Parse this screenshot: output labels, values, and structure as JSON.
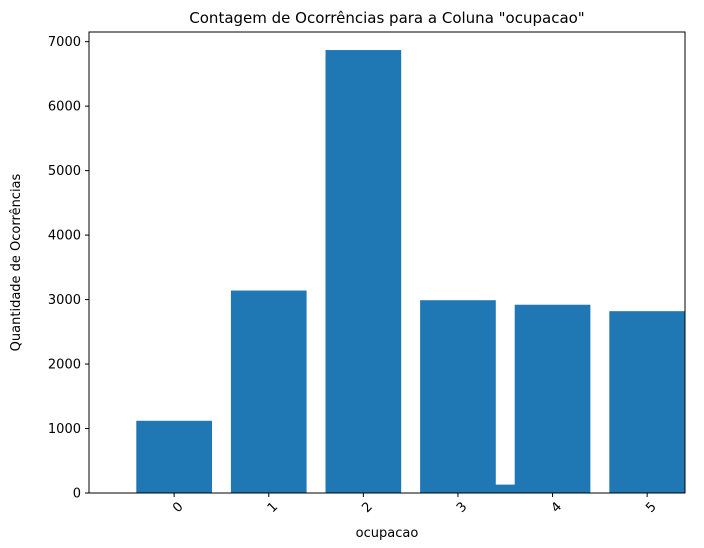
{
  "chart_data": {
    "type": "bar",
    "title": "Contagem de Ocorrências para a Coluna \"ocupacao\"",
    "xlabel": "ocupacao",
    "ylabel": "Quantidade de Ocorrências",
    "ylim": [
      0,
      7150
    ],
    "xlim": [
      -0.9,
      5.4
    ],
    "yticks": [
      0,
      1000,
      2000,
      3000,
      4000,
      5000,
      6000,
      7000
    ],
    "xticks": [
      0,
      1,
      2,
      3,
      4,
      5
    ],
    "xtick_rotation": 45,
    "bar_width": 0.8,
    "bar_color": "#1f77b4",
    "grid": false,
    "bars": [
      {
        "x": 0,
        "value": 1120
      },
      {
        "x": 1,
        "value": 3140
      },
      {
        "x": 2,
        "value": 6870
      },
      {
        "x": 3,
        "value": 2990
      },
      {
        "x": 3.35,
        "value": 130
      },
      {
        "x": 4,
        "value": 2920
      },
      {
        "x": 5,
        "value": 2820
      }
    ]
  }
}
